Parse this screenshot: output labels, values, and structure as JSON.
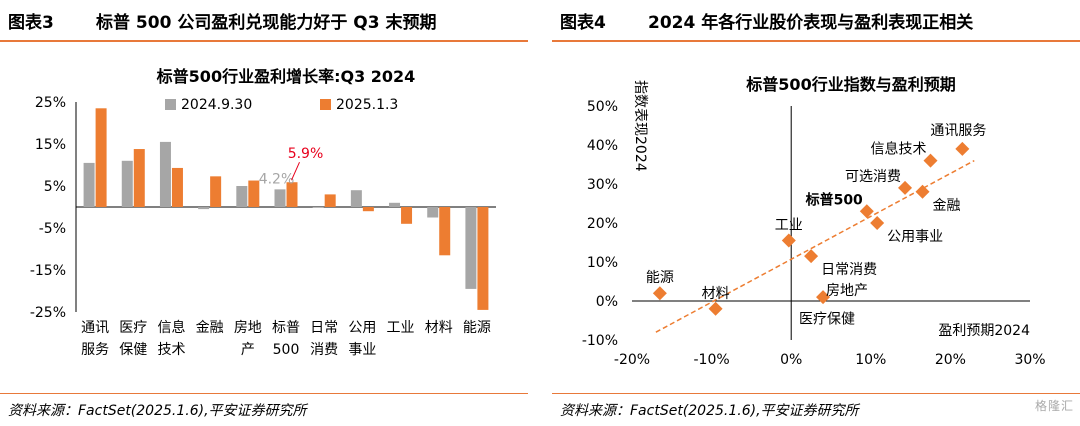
{
  "left": {
    "fig_number": "图表3",
    "title": "标普 500 公司盈利兑现能力好于 Q3 末预期",
    "source": "资料来源：FactSet(2025.1.6),平安证券研究所",
    "chart_data": {
      "type": "bar",
      "title": "标普500行业盈利增长率:Q3 2024",
      "categories": [
        {
          "line1": "通讯",
          "line2": "服务"
        },
        {
          "line1": "医疗",
          "line2": "保健"
        },
        {
          "line1": "信息",
          "line2": "技术"
        },
        {
          "line1": "金融",
          "line2": ""
        },
        {
          "line1": "房地",
          "line2": "产"
        },
        {
          "line1": "标普",
          "line2": "500"
        },
        {
          "line1": "日常",
          "line2": "消费"
        },
        {
          "line1": "公用",
          "line2": "事业"
        },
        {
          "line1": "工业",
          "line2": ""
        },
        {
          "line1": "材料",
          "line2": ""
        },
        {
          "line1": "能源",
          "line2": ""
        }
      ],
      "series": [
        {
          "name": "2024.9.30",
          "color": "#a6a6a6",
          "values": [
            10.5,
            11,
            15.5,
            -0.5,
            5,
            4.2,
            0,
            4,
            1,
            -2.5,
            -19.5
          ]
        },
        {
          "name": "2025.1.3",
          "color": "#ed7d31",
          "values": [
            23.5,
            13.8,
            9.3,
            7.3,
            6.3,
            5.9,
            3,
            -1,
            -4,
            -11.5,
            -24.5
          ]
        }
      ],
      "y_ticks": [
        "25%",
        "15%",
        "5%",
        "-5%",
        "-15%",
        "-25%"
      ],
      "ylim": [
        -25,
        25
      ],
      "annotations": [
        {
          "category_index": 5,
          "series_index": 0,
          "text": "4.2%",
          "color": "#a6a6a6"
        },
        {
          "category_index": 5,
          "series_index": 1,
          "text": "5.9%",
          "color": "#e8001c"
        }
      ],
      "legend": "top"
    }
  },
  "right": {
    "fig_number": "图表4",
    "title": "2024 年各行业股价表现与盈利表现正相关",
    "source": "资料来源：FactSet(2025.1.6),平安证券研究所",
    "watermark": "格隆汇",
    "chart_data": {
      "type": "scatter",
      "title": "标普500行业指数与盈利预期",
      "xlabel": "盈利预期2024",
      "ylabel": "指数表现2024",
      "xlim": [
        -20,
        30
      ],
      "ylim": [
        -10,
        50
      ],
      "x_ticks": [
        "-20%",
        "-10%",
        "0%",
        "10%",
        "20%",
        "30%"
      ],
      "y_ticks": [
        "50%",
        "40%",
        "30%",
        "20%",
        "10%",
        "0%",
        "-10%"
      ],
      "points": [
        {
          "label": "通讯服务",
          "x": 21.5,
          "y": 39,
          "label_pos": "above-left",
          "bold": false
        },
        {
          "label": "信息技术",
          "x": 17.5,
          "y": 36,
          "label_pos": "left",
          "bold": false
        },
        {
          "label": "金融",
          "x": 16.5,
          "y": 28,
          "label_pos": "below-right",
          "bold": false
        },
        {
          "label": "可选消费",
          "x": 14.3,
          "y": 29,
          "label_pos": "left",
          "bold": false
        },
        {
          "label": "标普500",
          "x": 9.5,
          "y": 23,
          "label_pos": "left",
          "bold": true
        },
        {
          "label": "公用事业",
          "x": 10.8,
          "y": 20,
          "label_pos": "below-right",
          "bold": false
        },
        {
          "label": "工业",
          "x": -0.3,
          "y": 15.5,
          "label_pos": "above",
          "bold": false
        },
        {
          "label": "日常消费",
          "x": 2.5,
          "y": 11.5,
          "label_pos": "below-right",
          "bold": false
        },
        {
          "label": "房地产",
          "x": 4,
          "y": 1,
          "label_pos": "right",
          "bold": false
        },
        {
          "label": "能源",
          "x": -16.5,
          "y": 2,
          "label_pos": "above",
          "bold": false
        },
        {
          "label": "材料",
          "x": -9.5,
          "y": -2,
          "label_pos": "above",
          "bold": false
        }
      ],
      "point_color": "#ed7d31",
      "trendline": {
        "x1": -17,
        "y1": -8,
        "x2": 23,
        "y2": 36,
        "color": "#ed7d31",
        "style": "dashed"
      },
      "extra_labels": [
        {
          "text": "医疗保健",
          "x": 4.5,
          "y": -4.5
        }
      ]
    }
  }
}
